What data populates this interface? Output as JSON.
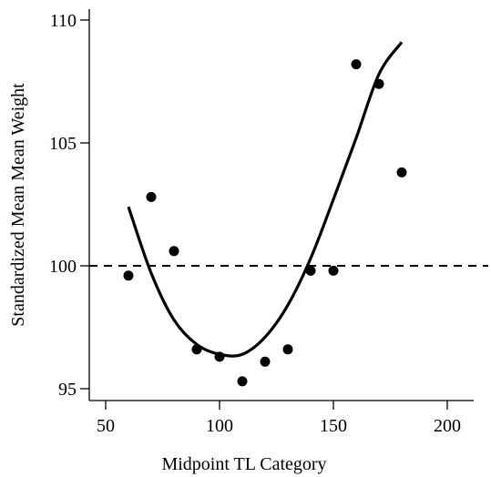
{
  "chart_data": {
    "type": "scatter",
    "title": "",
    "xlabel": "Midpoint TL Category",
    "ylabel": "Standardized Mean Mean Weight",
    "xlim": [
      45,
      210
    ],
    "ylim": [
      94.5,
      110.5
    ],
    "xticks": [
      50,
      100,
      150,
      200
    ],
    "yticks": [
      95,
      100,
      105,
      110
    ],
    "grid": false,
    "legend": "none",
    "points": [
      {
        "x": 60,
        "y": 99.6
      },
      {
        "x": 70,
        "y": 102.8
      },
      {
        "x": 80,
        "y": 100.6
      },
      {
        "x": 90,
        "y": 96.6
      },
      {
        "x": 100,
        "y": 96.3
      },
      {
        "x": 110,
        "y": 95.3
      },
      {
        "x": 120,
        "y": 96.1
      },
      {
        "x": 130,
        "y": 96.6
      },
      {
        "x": 140,
        "y": 99.8
      },
      {
        "x": 150,
        "y": 99.8
      },
      {
        "x": 160,
        "y": 108.2
      },
      {
        "x": 170,
        "y": 107.4
      },
      {
        "x": 180,
        "y": 103.8
      }
    ],
    "fit_curve": {
      "type": "quadratic",
      "x": [
        60,
        70,
        80,
        90,
        100,
        110,
        120,
        130,
        140,
        150,
        160,
        170,
        180
      ],
      "y": [
        102.4,
        99.7,
        97.8,
        96.8,
        96.4,
        96.4,
        97.1,
        98.4,
        100.3,
        102.7,
        105.2,
        107.8,
        109.1
      ]
    },
    "reference_line": {
      "y": 100,
      "style": "dashed"
    }
  }
}
